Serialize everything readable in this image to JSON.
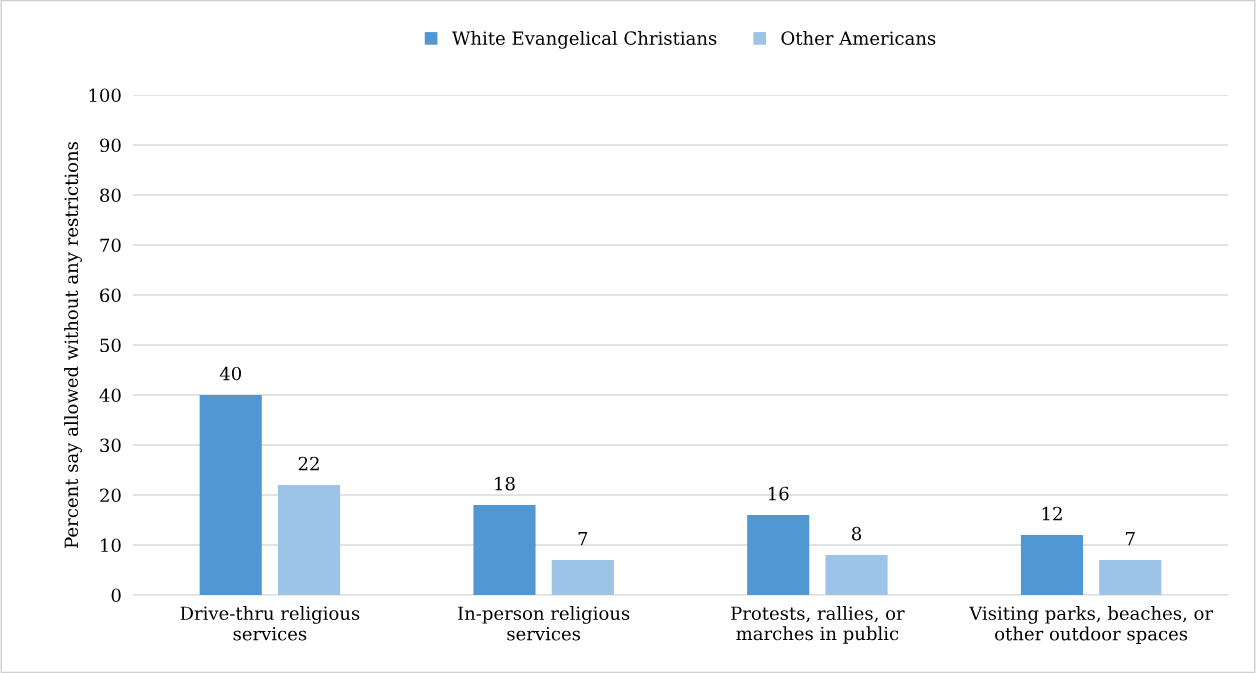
{
  "chart_data": {
    "type": "bar",
    "ylabel": "Percent say allowed without any restrictions",
    "categories": [
      "Drive-thru religious\nservices",
      "In-person religious\nservices",
      "Protests, rallies, or\nmarches in public",
      "Visiting parks, beaches, or\nother outdoor spaces"
    ],
    "series": [
      {
        "name": "White Evangelical Christians",
        "color": "#5097d3",
        "values": [
          40,
          18,
          16,
          12
        ]
      },
      {
        "name": "Other Americans",
        "color": "#9dc3e6",
        "values": [
          22,
          7,
          8,
          7
        ]
      }
    ],
    "ylim": [
      0,
      100
    ],
    "yticks": [
      0,
      10,
      20,
      30,
      40,
      50,
      60,
      70,
      80,
      90,
      100
    ],
    "grid": "y",
    "legend": "top",
    "data_labels": true
  }
}
